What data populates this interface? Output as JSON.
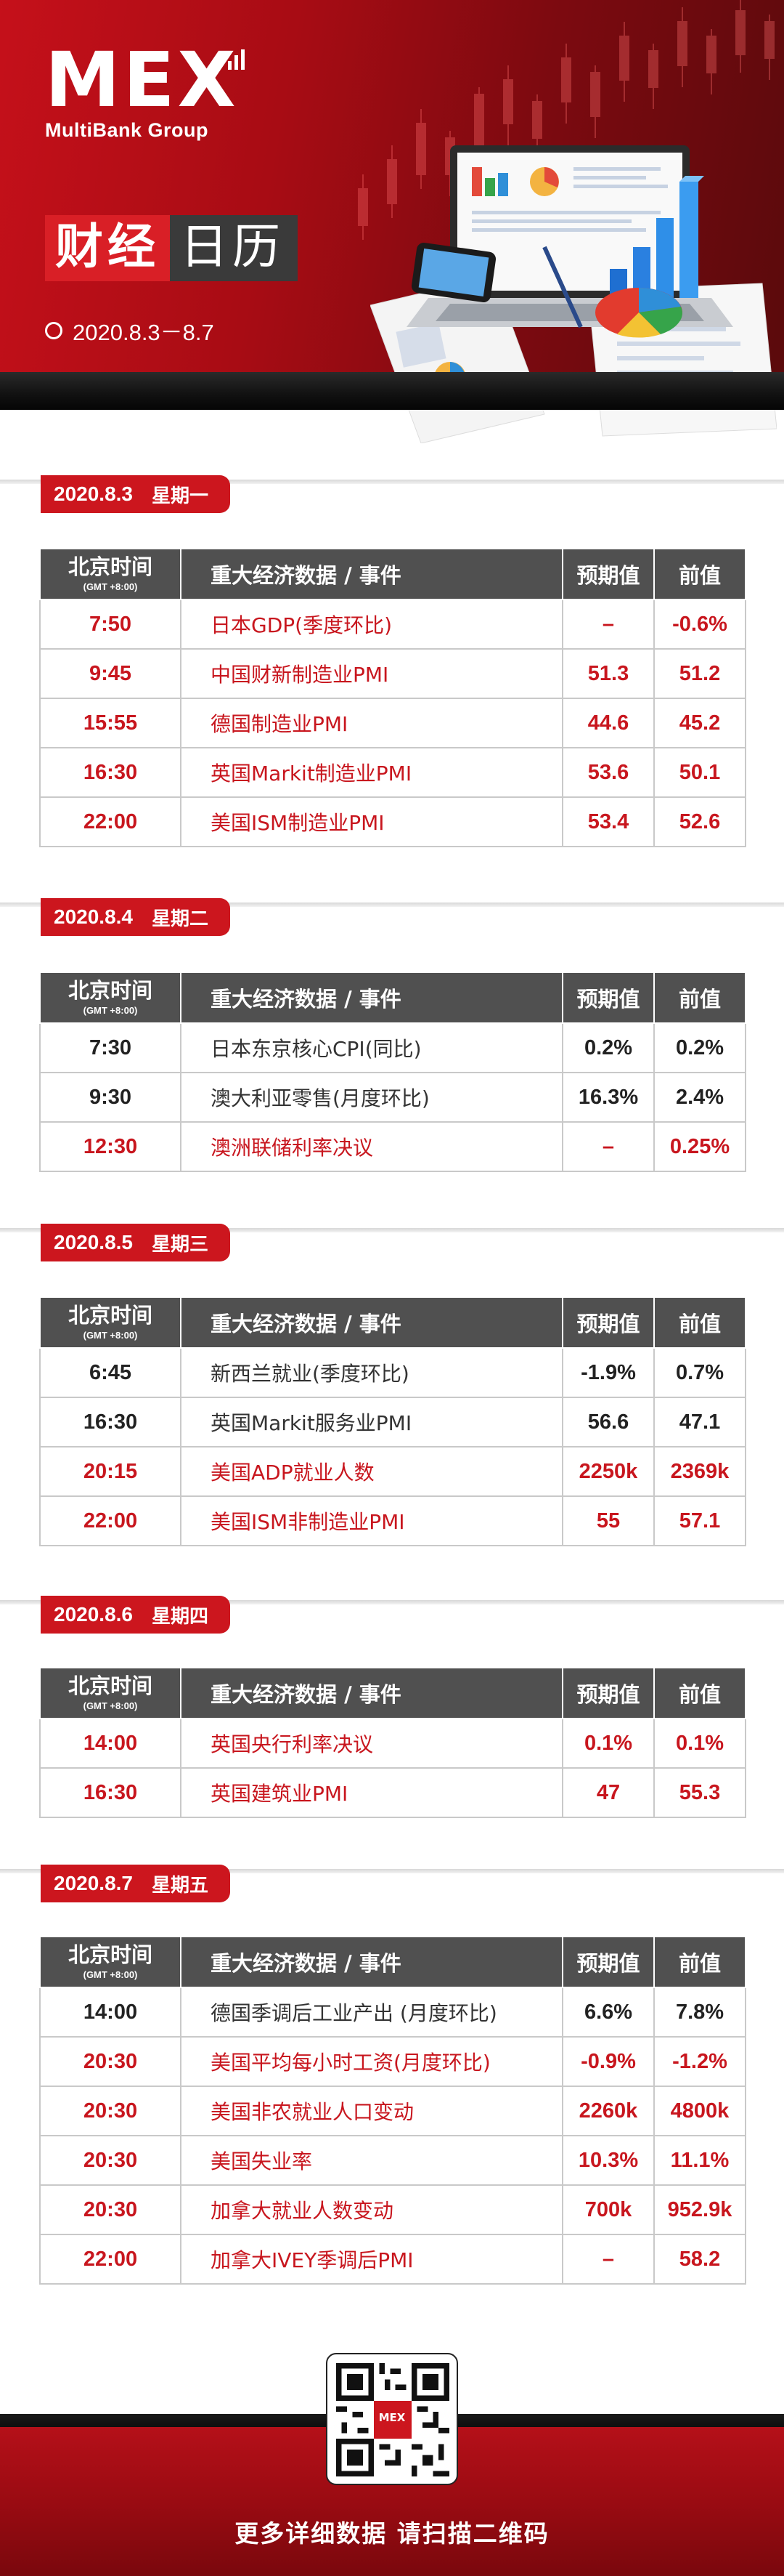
{
  "header": {
    "logo_text": "MEX",
    "brand": "MultiBank Group",
    "title_part1": "财经",
    "title_part2": "日历",
    "date_range": "2020.8.3－8.7",
    "colors": {
      "brand_red": "#cc161e",
      "dark_gray": "#505050"
    }
  },
  "table_headers": {
    "time": "北京时间",
    "time_sub": "(GMT +8:00)",
    "event": "重大经济数据 / 事件",
    "forecast": "预期值",
    "previous": "前值"
  },
  "days": [
    {
      "date": "2020.8.3",
      "weekday": "星期一",
      "rows": [
        {
          "time": "7:50",
          "event": "日本GDP(季度环比)",
          "forecast": "–",
          "previous": "-0.6%",
          "highlight": true
        },
        {
          "time": "9:45",
          "event": "中国财新制造业PMI",
          "forecast": "51.3",
          "previous": "51.2",
          "highlight": true
        },
        {
          "time": "15:55",
          "event": "德国制造业PMI",
          "forecast": "44.6",
          "previous": "45.2",
          "highlight": true
        },
        {
          "time": "16:30",
          "event": "英国Markit制造业PMI",
          "forecast": "53.6",
          "previous": "50.1",
          "highlight": true
        },
        {
          "time": "22:00",
          "event": "美国ISM制造业PMI",
          "forecast": "53.4",
          "previous": "52.6",
          "highlight": true
        }
      ]
    },
    {
      "date": "2020.8.4",
      "weekday": "星期二",
      "rows": [
        {
          "time": "7:30",
          "event": "日本东京核心CPI(同比)",
          "forecast": "0.2%",
          "previous": "0.2%",
          "highlight": false
        },
        {
          "time": "9:30",
          "event": "澳大利亚零售(月度环比)",
          "forecast": "16.3%",
          "previous": "2.4%",
          "highlight": false
        },
        {
          "time": "12:30",
          "event": "澳洲联储利率决议",
          "forecast": "–",
          "previous": "0.25%",
          "highlight": true
        }
      ]
    },
    {
      "date": "2020.8.5",
      "weekday": "星期三",
      "rows": [
        {
          "time": "6:45",
          "event": "新西兰就业(季度环比)",
          "forecast": "-1.9%",
          "previous": "0.7%",
          "highlight": false
        },
        {
          "time": "16:30",
          "event": "英国Markit服务业PMI",
          "forecast": "56.6",
          "previous": "47.1",
          "highlight": false
        },
        {
          "time": "20:15",
          "event": "美国ADP就业人数",
          "forecast": "2250k",
          "previous": "2369k",
          "highlight": true
        },
        {
          "time": "22:00",
          "event": "美国ISM非制造业PMI",
          "forecast": "55",
          "previous": "57.1",
          "highlight": true
        }
      ]
    },
    {
      "date": "2020.8.6",
      "weekday": "星期四",
      "rows": [
        {
          "time": "14:00",
          "event": "英国央行利率决议",
          "forecast": "0.1%",
          "previous": "0.1%",
          "highlight": true
        },
        {
          "time": "16:30",
          "event": "英国建筑业PMI",
          "forecast": "47",
          "previous": "55.3",
          "highlight": true
        }
      ]
    },
    {
      "date": "2020.8.7",
      "weekday": "星期五",
      "rows": [
        {
          "time": "14:00",
          "event": "德国季调后工业产出 (月度环比)",
          "forecast": "6.6%",
          "previous": "7.8%",
          "highlight": false
        },
        {
          "time": "20:30",
          "event": "美国平均每小时工资(月度环比)",
          "forecast": "-0.9%",
          "previous": "-1.2%",
          "highlight": true
        },
        {
          "time": "20:30",
          "event": "美国非农就业人口变动",
          "forecast": "2260k",
          "previous": "4800k",
          "highlight": true
        },
        {
          "time": "20:30",
          "event": "美国失业率",
          "forecast": "10.3%",
          "previous": "11.1%",
          "highlight": true
        },
        {
          "time": "20:30",
          "event": "加拿大就业人数变动",
          "forecast": "700k",
          "previous": "952.9k",
          "highlight": true
        },
        {
          "time": "22:00",
          "event": "加拿大IVEY季调后PMI",
          "forecast": "–",
          "previous": "58.2",
          "highlight": true
        }
      ]
    }
  ],
  "footer": {
    "qr_logo": "MEX",
    "cta": "更多详细数据 请扫描二维码"
  }
}
